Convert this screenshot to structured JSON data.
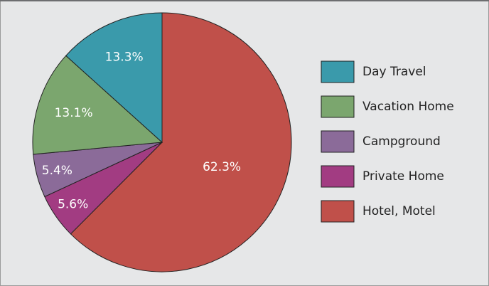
{
  "chart_data": {
    "type": "pie",
    "categories": [
      "Day Travel",
      "Vacation Home",
      "Campground",
      "Private Home",
      "Hotel, Motel"
    ],
    "values": [
      13.3,
      13.1,
      5.4,
      5.6,
      62.3
    ],
    "value_labels": [
      "13.3%",
      "13.1%",
      "5.4%",
      "5.6%",
      "62.3%"
    ],
    "colors": [
      "#3a9aab",
      "#7ba66e",
      "#8b6b99",
      "#a23c82",
      "#c0504a"
    ]
  }
}
